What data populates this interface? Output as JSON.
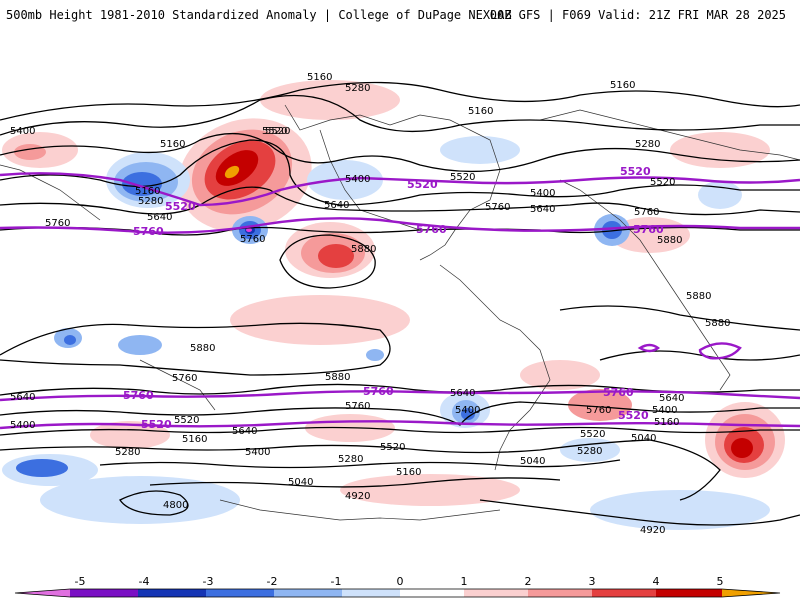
{
  "header": {
    "title": "500mb Height 1981-2010 Standardized Anomaly | College of DuPage NEXLAB",
    "run_info": "00Z GFS | F069 Valid: 21Z FRI MAR 28 2025"
  },
  "colors": {
    "positive_1": "#fbd0d0",
    "positive_2": "#f59a9a",
    "positive_3": "#e44040",
    "positive_4": "#c40000",
    "positive_5": "#f0a000",
    "negative_1": "#cfe2fb",
    "negative_2": "#8fb6f2",
    "negative_3": "#3c6fe0",
    "negative_4": "#1434b4",
    "negative_5": "#7a10c4",
    "height_contour": "#000000",
    "highlight_contour": "#9a18c8"
  },
  "contour_labels": {
    "l1": "5160",
    "l2": "5280",
    "l3": "5160",
    "l4": "5160",
    "l5": "5400",
    "l6": "5160",
    "l7": "5280",
    "l8": "5640",
    "l9": "5520",
    "l10": "5760",
    "l11": "5520",
    "l12": "5400",
    "l13": "5640",
    "l14": "5760",
    "l15": "5880",
    "l16": "5520",
    "l17": "5400",
    "l18": "5640",
    "l19": "5760",
    "l20": "5160",
    "l21": "5280",
    "l22": "5520",
    "l23": "5760",
    "l24": "5880",
    "l25": "5880",
    "l26": "5880",
    "l27": "5880",
    "l28": "5880",
    "l29": "5760",
    "l30": "5640",
    "l31": "5400",
    "l32": "5520",
    "l33": "5160",
    "l34": "5640",
    "l35": "5280",
    "l36": "5400",
    "l37": "5760",
    "l38": "5280",
    "l39": "5520",
    "l40": "5160",
    "l41": "5040",
    "l42": "4920",
    "l43": "4800",
    "l44": "5640",
    "l45": "5400",
    "l46": "5520",
    "l47": "5280",
    "l48": "5040",
    "l49": "5760",
    "l50": "5640",
    "l51": "5400",
    "l52": "5160",
    "l53": "5040",
    "l54": "4920"
  },
  "highlight_labels": {
    "p1": "5520",
    "p2": "5760",
    "p3": "5520",
    "p4": "5760",
    "p5": "5520",
    "p6": "5760",
    "p7": "5760",
    "p8": "5520",
    "p9": "5760",
    "p10": "5760",
    "p11": "5520"
  },
  "colorbar": {
    "ticks": [
      "-5",
      "-4",
      "-3",
      "-2",
      "-1",
      "0",
      "1",
      "2",
      "3",
      "4",
      "5"
    ]
  }
}
